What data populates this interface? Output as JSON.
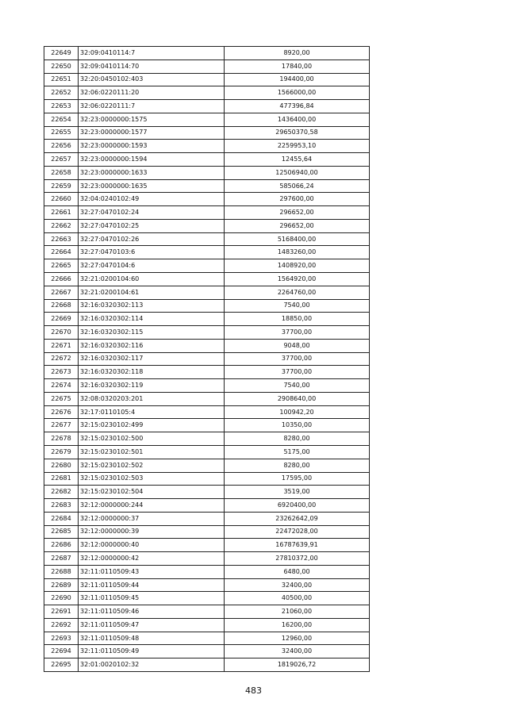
{
  "table": {
    "rows": [
      [
        "22649",
        "32:09:0410114:7",
        "8920,00"
      ],
      [
        "22650",
        "32:09:0410114:70",
        "17840,00"
      ],
      [
        "22651",
        "32:20:0450102:403",
        "194400,00"
      ],
      [
        "22652",
        "32:06:0220111:20",
        "1566000,00"
      ],
      [
        "22653",
        "32:06:0220111:7",
        "477396,84"
      ],
      [
        "22654",
        "32:23:0000000:1575",
        "1436400,00"
      ],
      [
        "22655",
        "32:23:0000000:1577",
        "29650370,58"
      ],
      [
        "22656",
        "32:23:0000000:1593",
        "2259953,10"
      ],
      [
        "22657",
        "32:23:0000000:1594",
        "12455,64"
      ],
      [
        "22658",
        "32:23:0000000:1633",
        "12506940,00"
      ],
      [
        "22659",
        "32:23:0000000:1635",
        "585066,24"
      ],
      [
        "22660",
        "32:04:0240102:49",
        "297600,00"
      ],
      [
        "22661",
        "32:27:0470102:24",
        "296652,00"
      ],
      [
        "22662",
        "32:27:0470102:25",
        "296652,00"
      ],
      [
        "22663",
        "32:27:0470102:26",
        "5168400,00"
      ],
      [
        "22664",
        "32:27:0470103:6",
        "1483260,00"
      ],
      [
        "22665",
        "32:27:0470104:6",
        "1408920,00"
      ],
      [
        "22666",
        "32:21:0200104:60",
        "1564920,00"
      ],
      [
        "22667",
        "32:21:0200104:61",
        "2264760,00"
      ],
      [
        "22668",
        "32:16:0320302:113",
        "7540,00"
      ],
      [
        "22669",
        "32:16:0320302:114",
        "18850,00"
      ],
      [
        "22670",
        "32:16:0320302:115",
        "37700,00"
      ],
      [
        "22671",
        "32:16:0320302:116",
        "9048,00"
      ],
      [
        "22672",
        "32:16:0320302:117",
        "37700,00"
      ],
      [
        "22673",
        "32:16:0320302:118",
        "37700,00"
      ],
      [
        "22674",
        "32:16:0320302:119",
        "7540,00"
      ],
      [
        "22675",
        "32:08:0320203:201",
        "2908640,00"
      ],
      [
        "22676",
        "32:17:0110105:4",
        "100942,20"
      ],
      [
        "22677",
        "32:15:0230102:499",
        "10350,00"
      ],
      [
        "22678",
        "32:15:0230102:500",
        "8280,00"
      ],
      [
        "22679",
        "32:15:0230102:501",
        "5175,00"
      ],
      [
        "22680",
        "32:15:0230102:502",
        "8280,00"
      ],
      [
        "22681",
        "32:15:0230102:503",
        "17595,00"
      ],
      [
        "22682",
        "32:15:0230102:504",
        "3519,00"
      ],
      [
        "22683",
        "32:12:0000000:244",
        "6920400,00"
      ],
      [
        "22684",
        "32:12:0000000:37",
        "23262642,09"
      ],
      [
        "22685",
        "32:12:0000000:39",
        "22472028,00"
      ],
      [
        "22686",
        "32:12:0000000:40",
        "16787639,91"
      ],
      [
        "22687",
        "32:12:0000000:42",
        "27810372,00"
      ],
      [
        "22688",
        "32:11:0110509:43",
        "6480,00"
      ],
      [
        "22689",
        "32:11:0110509:44",
        "32400,00"
      ],
      [
        "22690",
        "32:11:0110509:45",
        "40500,00"
      ],
      [
        "22691",
        "32:11:0110509:46",
        "21060,00"
      ],
      [
        "22692",
        "32:11:0110509:47",
        "16200,00"
      ],
      [
        "22693",
        "32:11:0110509:48",
        "12960,00"
      ],
      [
        "22694",
        "32:11:0110509:49",
        "32400,00"
      ],
      [
        "22695",
        "32:01:0020102:32",
        "1819026,72"
      ]
    ]
  },
  "page_number": "483"
}
